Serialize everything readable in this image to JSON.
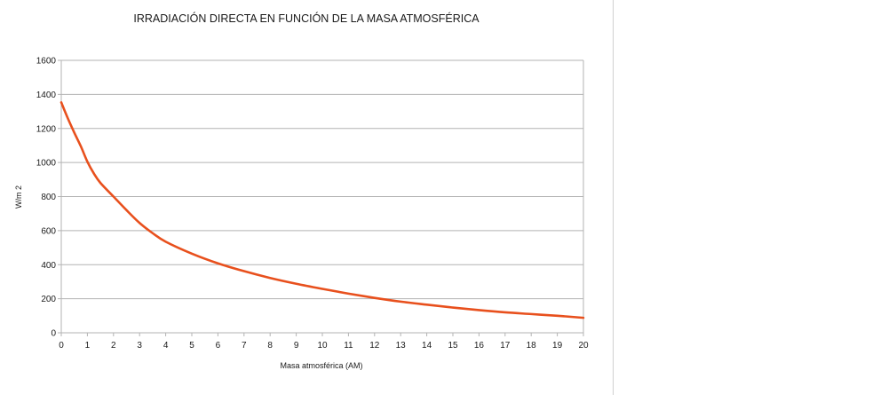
{
  "chart_data": {
    "type": "line",
    "title": "IRRADIACIÓN DIRECTA EN FUNCIÓN DE LA MASA ATMOSFÉRICA",
    "xlabel": "Masa atmosférica (AM)",
    "ylabel": "W/m 2",
    "xlim": [
      0,
      20
    ],
    "ylim": [
      0,
      1600
    ],
    "x_ticks": [
      "0",
      "1",
      "2",
      "3",
      "4",
      "5",
      "6",
      "7",
      "8",
      "9",
      "10",
      "11",
      "12",
      "13",
      "14",
      "15",
      "16",
      "17",
      "18",
      "19",
      "20"
    ],
    "y_ticks": [
      "0",
      "200",
      "400",
      "600",
      "800",
      "1000",
      "1200",
      "1400",
      "1600"
    ],
    "grid": true,
    "legend": "none",
    "line_color": "#e8501d",
    "series": [
      {
        "x": [
          0,
          0.25,
          0.5,
          0.75,
          1,
          1.25,
          1.5,
          2,
          2.5,
          3,
          3.5,
          4,
          5,
          6,
          7,
          8,
          9,
          10,
          11,
          12,
          13,
          14,
          15,
          16,
          17,
          18,
          19,
          20
        ],
        "y": [
          1353,
          1260,
          1175,
          1095,
          1005,
          935,
          880,
          800,
          720,
          645,
          585,
          535,
          465,
          408,
          362,
          322,
          288,
          258,
          230,
          205,
          183,
          165,
          148,
          133,
          120,
          110,
          100,
          88
        ]
      }
    ]
  }
}
